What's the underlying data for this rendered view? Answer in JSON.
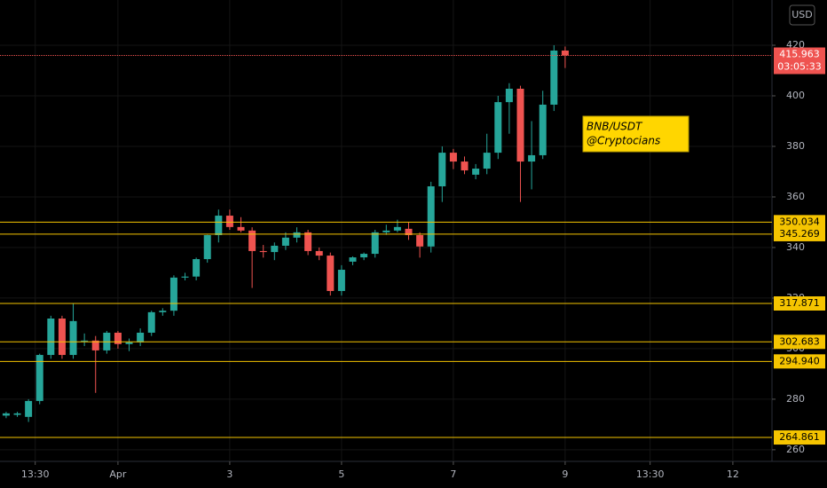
{
  "chart_data": {
    "type": "candlestick",
    "currency": "USD",
    "x": [
      0,
      1,
      2,
      3,
      4,
      5,
      6,
      7,
      8,
      9,
      10,
      11,
      12,
      13,
      14,
      15,
      16,
      17,
      18,
      19,
      20,
      21,
      22,
      23,
      24,
      25,
      26,
      27,
      28,
      29,
      30,
      31,
      32,
      33,
      34,
      35,
      36,
      37,
      38,
      39,
      40,
      41,
      42,
      43,
      44,
      45,
      46,
      47,
      48,
      49,
      50
    ],
    "open": [
      273.5,
      273.8,
      273,
      279.3,
      297.5,
      311.9,
      297.5,
      303,
      303.2,
      299.3,
      306.3,
      301.8,
      302.5,
      306.3,
      314.4,
      315,
      328.1,
      328.5,
      335.4,
      344.9,
      352.6,
      348.1,
      346.7,
      338.6,
      338.2,
      340.7,
      343.9,
      346,
      338.6,
      336.8,
      322.8,
      334.4,
      336.1,
      337.5,
      346,
      346.7,
      347.4,
      344.9,
      340.4,
      364.2,
      377.5,
      374,
      368.8,
      371.2,
      377.5,
      397.5,
      402.8,
      374,
      376.5,
      396.5,
      417.9
    ],
    "high": [
      275,
      275,
      280,
      298,
      313,
      313,
      318,
      306,
      305,
      307,
      307,
      304,
      308,
      315,
      316,
      329,
      330,
      336,
      345,
      355,
      355,
      352,
      348,
      341,
      342,
      346,
      348,
      347,
      340,
      338,
      333,
      336.5,
      338,
      347,
      349,
      351,
      350,
      346,
      366,
      380,
      379,
      376,
      373,
      385,
      400,
      405,
      404,
      390,
      402,
      420,
      419.5
    ],
    "low": [
      272.5,
      273,
      271,
      278,
      296,
      296,
      296,
      301,
      282.5,
      298,
      300,
      299,
      301,
      305,
      313,
      313,
      327,
      327,
      334,
      342,
      347,
      346,
      324,
      336,
      335,
      339,
      342,
      337,
      335,
      321,
      321,
      333,
      335,
      336,
      345,
      346,
      343,
      336,
      338,
      358,
      371,
      369,
      367,
      369,
      375,
      385,
      358,
      363,
      375,
      394,
      411
    ],
    "close": [
      274.4,
      274.4,
      279.3,
      297.5,
      311.9,
      297.5,
      310.9,
      303.2,
      299.3,
      306.3,
      301.8,
      302.5,
      306.3,
      314.4,
      315,
      328.1,
      328.5,
      335.4,
      344.9,
      352.6,
      348.1,
      346.7,
      338.6,
      338.2,
      340.7,
      343.9,
      346,
      338.6,
      336.8,
      322.8,
      331.2,
      336.1,
      337.5,
      346,
      346.7,
      348.1,
      344.9,
      340.4,
      364.2,
      377.5,
      374,
      370.5,
      371.2,
      377.5,
      397.5,
      402.8,
      374,
      376.5,
      396.5,
      417.9,
      415.963
    ],
    "up_color": "#26a69a",
    "down_color": "#ef5350",
    "xlim": [
      -0.55,
      68.5
    ],
    "ylim": [
      255.4,
      437.9
    ],
    "yticks": [
      260,
      280,
      300,
      320,
      340,
      360,
      380,
      400,
      420
    ],
    "xticks": [
      {
        "value": 2.6,
        "label": "13:30"
      },
      {
        "value": 10,
        "label": "Apr"
      },
      {
        "value": 20,
        "label": "3"
      },
      {
        "value": 30,
        "label": "5"
      },
      {
        "value": 40,
        "label": "7"
      },
      {
        "value": 50,
        "label": "9"
      },
      {
        "value": 57.6,
        "label": "13:30"
      },
      {
        "value": 65,
        "label": "12"
      }
    ],
    "grid": true,
    "levels": [
      350.034,
      345.269,
      317.871,
      302.683,
      {
        "value": 294.94,
        "label": "294.940"
      },
      264.861
    ],
    "level_color": "#f5c400",
    "last_price": 415.963,
    "countdown": "03:05:33",
    "annotation": [
      "BNB/USDT",
      "@Cryptocians"
    ]
  }
}
